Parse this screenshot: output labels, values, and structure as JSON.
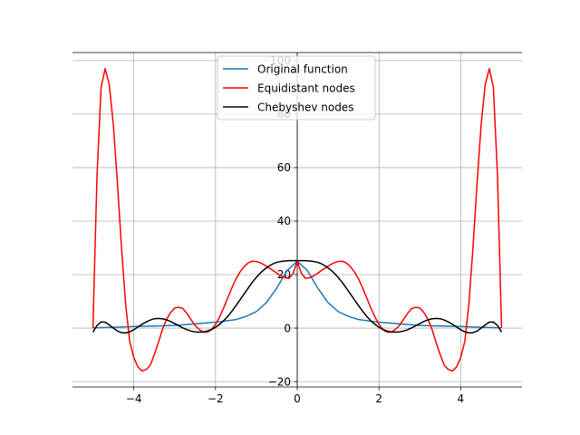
{
  "chart_data": {
    "type": "line",
    "title": "",
    "xlabel": "",
    "ylabel": "",
    "xlim": [
      -5.5,
      5.5
    ],
    "ylim": [
      -22,
      103
    ],
    "xticks": [
      -4,
      -2,
      0,
      2,
      4
    ],
    "yticks": [
      -20,
      0,
      20,
      40,
      60,
      80,
      100
    ],
    "grid": true,
    "spines": "centered at the origin",
    "legend_position": "top-center",
    "series": [
      {
        "name": "Original function",
        "color": "#1f77b4",
        "x": [
          -5,
          -4.5,
          -4,
          -3.5,
          -3,
          -2.5,
          -2,
          -1.75,
          -1.5,
          -1.25,
          -1,
          -0.75,
          -0.5,
          -0.25,
          0,
          0.25,
          0.5,
          0.75,
          1,
          1.25,
          1.5,
          1.75,
          2,
          2.5,
          3,
          3.5,
          4,
          4.5,
          5
        ],
        "y": [
          0.1,
          0.3,
          0.6,
          0.8,
          1.0,
          1.6,
          2.2,
          2.7,
          3.2,
          4.4,
          6.2,
          9.6,
          15.0,
          21.5,
          25.0,
          21.5,
          15.0,
          9.6,
          6.2,
          4.4,
          3.2,
          2.7,
          2.2,
          1.6,
          1.0,
          0.8,
          0.6,
          0.3,
          0.1
        ]
      },
      {
        "name": "Equidistant nodes",
        "color": "#ff0000",
        "x": [
          -5,
          -4.9,
          -4.8,
          -4.7,
          -4.6,
          -4.5,
          -4.4,
          -4.3,
          -4.2,
          -4.1,
          -4.0,
          -3.9,
          -3.8,
          -3.7,
          -3.6,
          -3.5,
          -3.4,
          -3.3,
          -3.2,
          -3.1,
          -3.0,
          -2.9,
          -2.8,
          -2.7,
          -2.6,
          -2.5,
          -2.4,
          -2.3,
          -2.2,
          -2.1,
          -2.0,
          -1.9,
          -1.8,
          -1.7,
          -1.6,
          -1.5,
          -1.4,
          -1.3,
          -1.2,
          -1.1,
          -1.0,
          -0.9,
          -0.8,
          -0.7,
          -0.6,
          -0.5,
          -0.4,
          -0.3,
          -0.2,
          -0.1,
          0.0,
          0.1,
          0.2,
          0.3,
          0.4,
          0.5,
          0.6,
          0.7,
          0.8,
          0.9,
          1.0,
          1.1,
          1.2,
          1.3,
          1.4,
          1.5,
          1.6,
          1.7,
          1.8,
          1.9,
          2.0,
          2.1,
          2.2,
          2.3,
          2.4,
          2.5,
          2.6,
          2.7,
          2.8,
          2.9,
          3.0,
          3.1,
          3.2,
          3.3,
          3.4,
          3.5,
          3.6,
          3.7,
          3.8,
          3.9,
          4.0,
          4.1,
          4.2,
          4.3,
          4.4,
          4.5,
          4.6,
          4.7,
          4.8,
          4.9,
          5.0
        ],
        "y": [
          0.1,
          57,
          90,
          97,
          91,
          76,
          54,
          30,
          9,
          -5,
          -11,
          -14.5,
          -16,
          -15.5,
          -14,
          -10,
          -5.5,
          -0.5,
          3.2,
          5.8,
          7.5,
          7.8,
          7.3,
          5.5,
          3.2,
          1,
          -0.5,
          -1.5,
          -1.5,
          -0.6,
          1.4,
          4.2,
          7.6,
          11.3,
          15,
          18.4,
          21,
          23,
          24.4,
          25,
          24.9,
          24.4,
          23.6,
          22.6,
          21.6,
          20.5,
          19.5,
          18.8,
          18.6,
          20.5,
          25,
          20.5,
          18.6,
          18.8,
          19.5,
          20.5,
          21.6,
          22.6,
          23.6,
          24.4,
          24.9,
          25,
          24.4,
          23,
          21,
          18.4,
          15,
          11.3,
          7.6,
          4.2,
          1.4,
          -0.6,
          -1.5,
          -1.5,
          -0.5,
          1,
          3.2,
          5.5,
          7.3,
          7.8,
          7.5,
          5.8,
          3.2,
          -0.5,
          -5.5,
          -10,
          -14,
          -15.5,
          -16,
          -14.5,
          -11,
          -5,
          9,
          30,
          54,
          76,
          91,
          97,
          90,
          57,
          0.1
        ]
      },
      {
        "name": "Chebyshev nodes",
        "color": "#000000",
        "x": [
          -5,
          -4.9,
          -4.8,
          -4.7,
          -4.6,
          -4.5,
          -4.4,
          -4.3,
          -4.2,
          -4.1,
          -4.0,
          -3.9,
          -3.8,
          -3.7,
          -3.6,
          -3.5,
          -3.4,
          -3.3,
          -3.2,
          -3.1,
          -3.0,
          -2.9,
          -2.8,
          -2.7,
          -2.6,
          -2.5,
          -2.4,
          -2.3,
          -2.2,
          -2.1,
          -2.0,
          -1.9,
          -1.8,
          -1.7,
          -1.6,
          -1.5,
          -1.4,
          -1.3,
          -1.2,
          -1.1,
          -1.0,
          -0.9,
          -0.8,
          -0.7,
          -0.6,
          -0.5,
          -0.4,
          -0.3,
          -0.2,
          -0.1,
          0.0,
          0.1,
          0.2,
          0.3,
          0.4,
          0.5,
          0.6,
          0.7,
          0.8,
          0.9,
          1.0,
          1.1,
          1.2,
          1.3,
          1.4,
          1.5,
          1.6,
          1.7,
          1.8,
          1.9,
          2.0,
          2.1,
          2.2,
          2.3,
          2.4,
          2.5,
          2.6,
          2.7,
          2.8,
          2.9,
          3.0,
          3.1,
          3.2,
          3.3,
          3.4,
          3.5,
          3.6,
          3.7,
          3.8,
          3.9,
          4.0,
          4.1,
          4.2,
          4.3,
          4.4,
          4.5,
          4.6,
          4.7,
          4.8,
          4.9,
          5.0
        ],
        "y": [
          -1.5,
          1.0,
          2.3,
          2.2,
          1.2,
          0,
          -1.1,
          -1.7,
          -1.8,
          -1.4,
          -0.6,
          0.4,
          1.4,
          2.3,
          3.0,
          3.5,
          3.6,
          3.5,
          3.1,
          2.5,
          1.7,
          0.9,
          0.1,
          -0.6,
          -1.1,
          -1.4,
          -1.5,
          -1.4,
          -1.1,
          -0.5,
          0.3,
          1.4,
          2.8,
          4.4,
          6.3,
          8.4,
          10.6,
          12.8,
          15.0,
          17.1,
          19.0,
          20.6,
          22.0,
          23.1,
          24.0,
          24.6,
          24.9,
          25.1,
          25.2,
          25.2,
          25.2,
          25.2,
          25.2,
          25.1,
          24.9,
          24.6,
          24.0,
          23.1,
          22.0,
          20.6,
          19.0,
          17.1,
          15.0,
          12.8,
          10.6,
          8.4,
          6.3,
          4.4,
          2.8,
          1.4,
          0.3,
          -0.5,
          -1.1,
          -1.4,
          -1.5,
          -1.4,
          -1.1,
          -0.6,
          0.1,
          0.9,
          1.7,
          2.5,
          3.1,
          3.5,
          3.6,
          3.5,
          3.0,
          2.3,
          1.4,
          0.4,
          -0.6,
          -1.4,
          -1.8,
          -1.7,
          -1.1,
          0,
          1.2,
          2.2,
          2.3,
          1.0,
          -1.5
        ]
      }
    ]
  }
}
